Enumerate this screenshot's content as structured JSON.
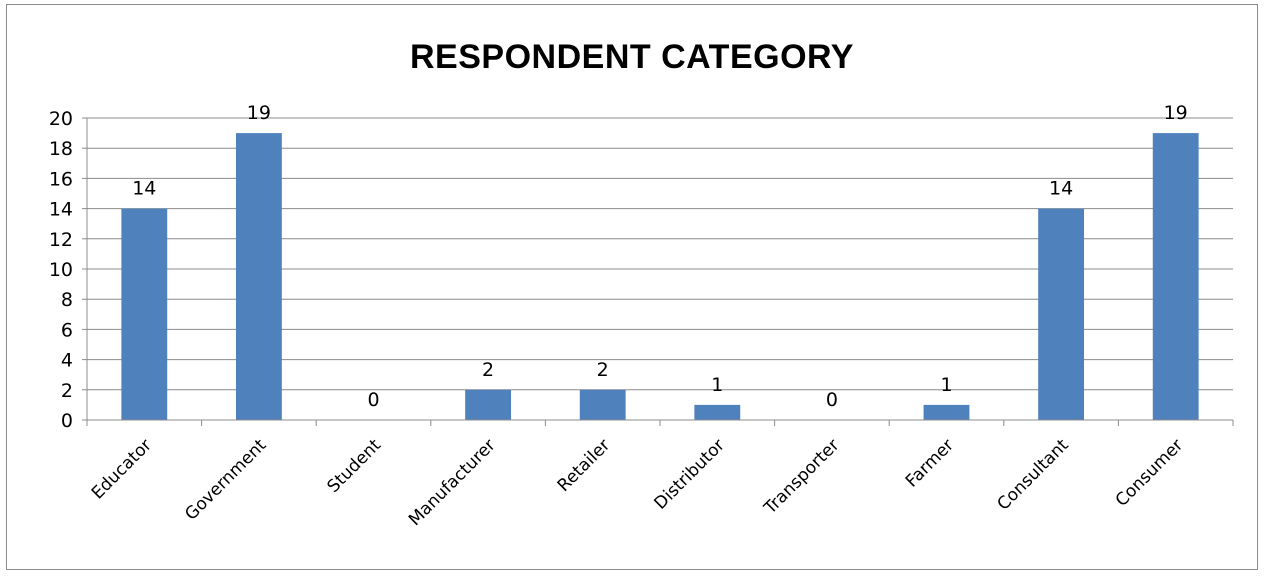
{
  "chart_data": {
    "type": "bar",
    "title": "RESPONDENT CATEGORY",
    "categories": [
      "Educator",
      "Government",
      "Student",
      "Manufacturer",
      "Retailer",
      "Distributor",
      "Transporter",
      "Farmer",
      "Consultant",
      "Consumer"
    ],
    "values": [
      14,
      19,
      0,
      2,
      2,
      1,
      0,
      1,
      14,
      19
    ],
    "ylim": [
      0,
      20
    ],
    "yticks": [
      "0",
      "2",
      "4",
      "6",
      "8",
      "10",
      "12",
      "14",
      "16",
      "18",
      "20"
    ],
    "grid": true,
    "data_labels": true,
    "bar_color": "#4f81bd"
  }
}
